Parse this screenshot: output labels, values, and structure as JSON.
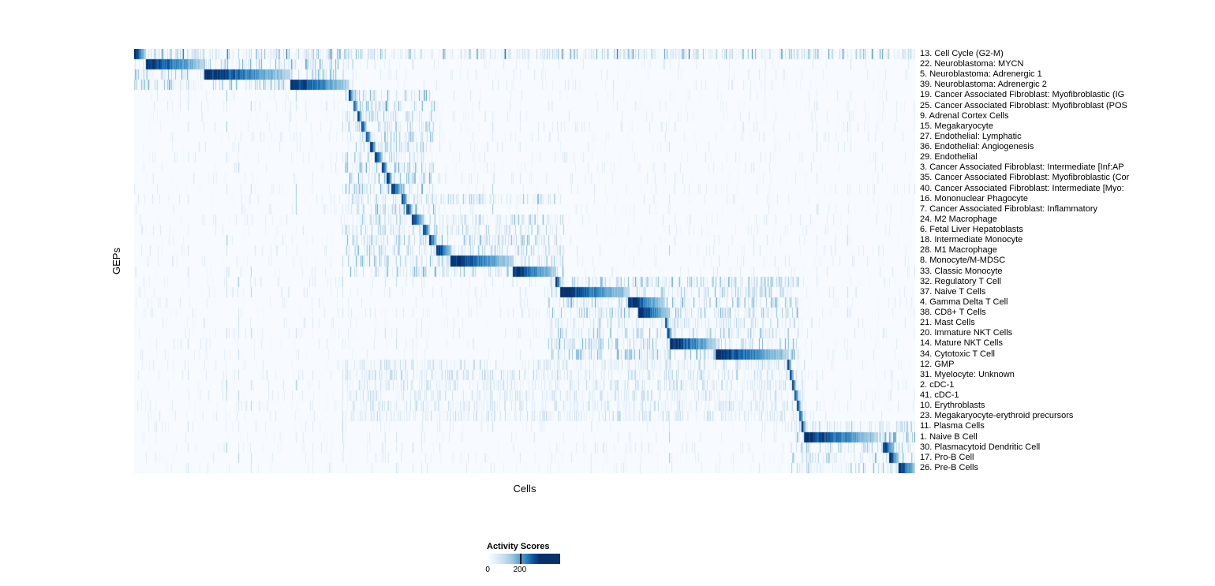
{
  "figure": {
    "background_color": "#ffffff"
  },
  "legend": {
    "title": "Activity Scores",
    "tick_labels": [
      "0",
      "200"
    ]
  },
  "chart_data": {
    "type": "heatmap",
    "title": "",
    "xlabel": "Cells",
    "ylabel": "GEPs",
    "colormap": "Blues",
    "colormap_colors": {
      "low": "#f7fbff",
      "mid": "#6baed6",
      "high": "#08306b"
    },
    "colorbar": {
      "title": "Activity Scores",
      "tick_labels": [
        "0",
        "200"
      ],
      "tick_position_fraction": 0.45
    },
    "n_rows": 41,
    "description": "Each row is a GEP, each column a cell; cells are grouped so each GEP's high-activity block forms a diagonal band. block = [startFraction, endFraction] of x-axis with activity fading left-to-right; domain = [startFraction, endFraction, strength] of diffuse low activity.",
    "rows": [
      {
        "label": "13. Cell Cycle (G2-M)",
        "block": [
          0.0,
          0.014
        ],
        "domain": [
          0.0,
          1.0,
          0.5
        ],
        "spikes": 0.02
      },
      {
        "label": "22. Neuroblastoma: MYCN",
        "block": [
          0.015,
          0.089
        ],
        "domain": [
          0.0,
          0.28,
          0.55
        ]
      },
      {
        "label": "5. Neuroblastoma: Adrenergic 1",
        "block": [
          0.089,
          0.2
        ],
        "domain": [
          0.0,
          0.28,
          0.55
        ]
      },
      {
        "label": "39. Neuroblastoma: Adrenergic 2",
        "block": [
          0.2,
          0.274
        ],
        "domain": [
          0.0,
          0.28,
          0.55
        ]
      },
      {
        "label": "19. Cancer Associated Fibroblast: Myofibroblastic (IG",
        "block": [
          0.274,
          0.281
        ],
        "domain": [
          0.27,
          0.385,
          0.6
        ]
      },
      {
        "label": "25. Cancer Associated Fibroblast: Myofibroblast (POS",
        "block": [
          0.28,
          0.286
        ],
        "domain": [
          0.27,
          0.385,
          0.6
        ]
      },
      {
        "label": "9. Adrenal Cortex Cells",
        "block": [
          0.285,
          0.291
        ],
        "domain": [
          0.27,
          0.385,
          0.5
        ]
      },
      {
        "label": "15. Megakaryocyte",
        "block": [
          0.29,
          0.297
        ],
        "domain": [
          0.27,
          0.385,
          0.4
        ]
      },
      {
        "label": "27. Endothelial: Lymphatic",
        "block": [
          0.296,
          0.303
        ],
        "domain": [
          0.27,
          0.385,
          0.5
        ]
      },
      {
        "label": "36. Endothelial: Angiogenesis",
        "block": [
          0.302,
          0.309
        ],
        "domain": [
          0.27,
          0.385,
          0.5
        ]
      },
      {
        "label": "29. Endothelial",
        "block": [
          0.308,
          0.318
        ],
        "domain": [
          0.27,
          0.385,
          0.5
        ]
      },
      {
        "label": "3. Cancer Associated Fibroblast: Intermediate [Inf:AP",
        "block": [
          0.317,
          0.324
        ],
        "domain": [
          0.27,
          0.385,
          0.6
        ]
      },
      {
        "label": "35. Cancer Associated Fibroblast: Myofibroblastic (Cor",
        "block": [
          0.323,
          0.33
        ],
        "domain": [
          0.27,
          0.385,
          0.6
        ]
      },
      {
        "label": "40. Cancer Associated Fibroblast: Intermediate [Myo:",
        "block": [
          0.329,
          0.343
        ],
        "domain": [
          0.27,
          0.385,
          0.6
        ]
      },
      {
        "label": "16. Mononuclear Phagocyte",
        "block": [
          0.342,
          0.349
        ],
        "domain": [
          0.27,
          0.55,
          0.45
        ]
      },
      {
        "label": "7. Cancer Associated Fibroblast: Inflammatory",
        "block": [
          0.348,
          0.356
        ],
        "domain": [
          0.27,
          0.385,
          0.6
        ]
      },
      {
        "label": "24. M2 Macrophage",
        "block": [
          0.355,
          0.37
        ],
        "domain": [
          0.27,
          0.55,
          0.5
        ]
      },
      {
        "label": "6. Fetal Liver Hepatoblasts",
        "block": [
          0.369,
          0.378
        ],
        "domain": [
          0.27,
          0.55,
          0.4
        ]
      },
      {
        "label": "18. Intermediate Monocyte",
        "block": [
          0.377,
          0.387
        ],
        "domain": [
          0.27,
          0.55,
          0.5
        ]
      },
      {
        "label": "28. M1 Macrophage",
        "block": [
          0.386,
          0.406
        ],
        "domain": [
          0.27,
          0.55,
          0.5
        ]
      },
      {
        "label": "8. Monocyte/M-MDSC",
        "block": [
          0.405,
          0.485
        ],
        "domain": [
          0.27,
          0.55,
          0.55
        ]
      },
      {
        "label": "33. Classic Monocyte",
        "block": [
          0.484,
          0.54
        ],
        "domain": [
          0.27,
          0.55,
          0.55
        ]
      },
      {
        "label": "32. Regulatory T Cell",
        "block": [
          0.539,
          0.546
        ],
        "domain": [
          0.53,
          0.85,
          0.55
        ]
      },
      {
        "label": "37. Naive T Cells",
        "block": [
          0.545,
          0.634
        ],
        "domain": [
          0.53,
          0.85,
          0.55
        ]
      },
      {
        "label": "4. Gamma Delta T Cell",
        "block": [
          0.632,
          0.678
        ],
        "domain": [
          0.53,
          0.85,
          0.55
        ]
      },
      {
        "label": "38. CD8+ T Cells",
        "block": [
          0.645,
          0.685
        ],
        "domain": [
          0.53,
          0.85,
          0.55
        ]
      },
      {
        "label": "21. Mast Cells",
        "block": [
          0.679,
          0.684
        ],
        "domain": [
          0.53,
          0.85,
          0.35
        ]
      },
      {
        "label": "20. Immature NKT Cells",
        "block": [
          0.682,
          0.688
        ],
        "domain": [
          0.53,
          0.85,
          0.5
        ]
      },
      {
        "label": "14. Mature NKT Cells",
        "block": [
          0.685,
          0.745
        ],
        "domain": [
          0.53,
          0.85,
          0.55
        ]
      },
      {
        "label": "34. Cytotoxic T Cell",
        "block": [
          0.744,
          0.838
        ],
        "domain": [
          0.53,
          0.85,
          0.55
        ]
      },
      {
        "label": "12. GMP",
        "block": [
          0.836,
          0.841
        ],
        "domain": [
          0.27,
          0.86,
          0.3
        ]
      },
      {
        "label": "31. Myelocyte: Unknown",
        "block": [
          0.839,
          0.844
        ],
        "domain": [
          0.27,
          0.86,
          0.35
        ]
      },
      {
        "label": "2. cDC-1",
        "block": [
          0.842,
          0.847
        ],
        "domain": [
          0.27,
          0.86,
          0.3
        ]
      },
      {
        "label": "41. cDC-1",
        "block": [
          0.845,
          0.85
        ],
        "domain": [
          0.27,
          0.86,
          0.3
        ]
      },
      {
        "label": "10. Erythroblasts",
        "block": [
          0.848,
          0.853
        ],
        "domain": [
          0.27,
          0.86,
          0.3
        ]
      },
      {
        "label": "23. Megakaryocyte-erythroid precursors",
        "block": [
          0.851,
          0.856
        ],
        "domain": [
          0.27,
          0.86,
          0.3
        ]
      },
      {
        "label": "11. Plasma Cells",
        "block": [
          0.854,
          0.859
        ],
        "domain": [
          0.84,
          1.0,
          0.4
        ]
      },
      {
        "label": "1. Naive B Cell",
        "block": [
          0.857,
          0.952
        ],
        "domain": [
          0.84,
          1.0,
          0.6
        ]
      },
      {
        "label": "30. Plasmacytoid Dendritic Cell",
        "block": [
          0.958,
          0.973
        ],
        "domain": [
          0.84,
          1.0,
          0.5
        ]
      },
      {
        "label": "17. Pro-B Cell",
        "block": [
          0.966,
          0.979
        ],
        "domain": [
          0.84,
          1.0,
          0.5
        ]
      },
      {
        "label": "26. Pre-B Cells",
        "block": [
          0.978,
          1.0
        ],
        "domain": [
          0.84,
          1.0,
          0.5
        ]
      }
    ]
  }
}
